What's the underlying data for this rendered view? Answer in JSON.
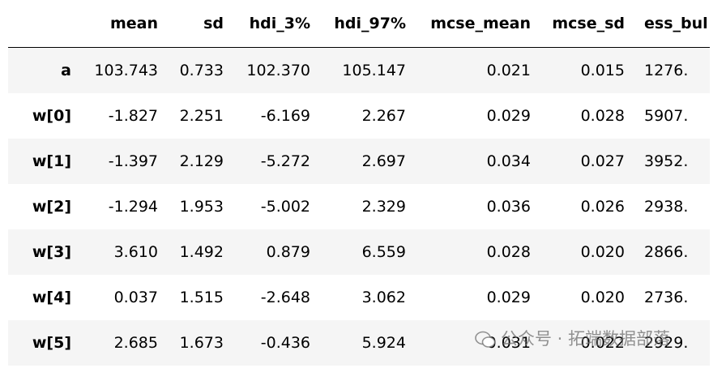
{
  "table": {
    "columns": [
      "",
      "mean",
      "sd",
      "hdi_3%",
      "hdi_97%",
      "mcse_mean",
      "mcse_sd",
      "ess_bul"
    ],
    "rows": [
      [
        "a",
        "103.743",
        "0.733",
        "102.370",
        "105.147",
        "0.021",
        "0.015",
        "1276."
      ],
      [
        "w[0]",
        "-1.827",
        "2.251",
        "-6.169",
        "2.267",
        "0.029",
        "0.028",
        "5907."
      ],
      [
        "w[1]",
        "-1.397",
        "2.129",
        "-5.272",
        "2.697",
        "0.034",
        "0.027",
        "3952."
      ],
      [
        "w[2]",
        "-1.294",
        "1.953",
        "-5.002",
        "2.329",
        "0.036",
        "0.026",
        "2938."
      ],
      [
        "w[3]",
        "3.610",
        "1.492",
        "0.879",
        "6.559",
        "0.028",
        "0.020",
        "2866."
      ],
      [
        "w[4]",
        "0.037",
        "1.515",
        "-2.648",
        "3.062",
        "0.029",
        "0.020",
        "2736."
      ],
      [
        "w[5]",
        "2.685",
        "1.673",
        "-0.436",
        "5.924",
        "0.031",
        "0.022",
        "2929."
      ]
    ]
  },
  "watermark": "公众号 · 拓端数据部落"
}
